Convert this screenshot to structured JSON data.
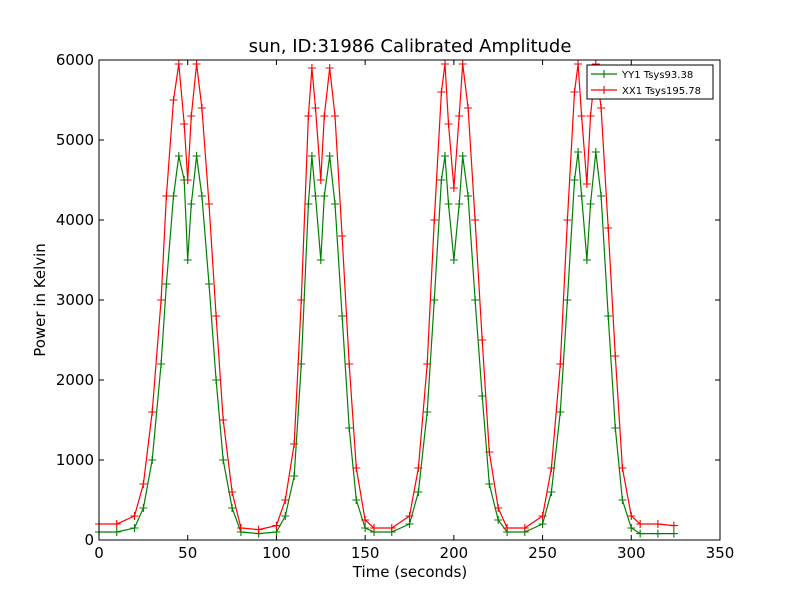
{
  "chart_data": {
    "type": "line",
    "title": "sun, ID:31986 Calibrated Amplitude",
    "xlabel": "Time (seconds)",
    "ylabel": "Power in Kelvin",
    "xlim": [
      0,
      350
    ],
    "ylim": [
      0,
      6000
    ],
    "xticks": [
      "0",
      "50",
      "100",
      "150",
      "200",
      "250",
      "300",
      "350"
    ],
    "yticks": [
      "0",
      "1000",
      "2000",
      "3000",
      "4000",
      "5000",
      "6000"
    ],
    "grid": false,
    "legend_position": "top-right",
    "marker": "+",
    "series": [
      {
        "name": "YY1 Tsys93.38",
        "color": "#008000",
        "x": [
          0,
          10,
          20,
          25,
          30,
          35,
          38,
          42,
          45,
          48,
          50,
          52,
          55,
          58,
          62,
          66,
          70,
          75,
          80,
          90,
          100,
          105,
          110,
          114,
          118,
          120,
          122,
          125,
          127,
          130,
          133,
          137,
          141,
          145,
          150,
          155,
          165,
          175,
          180,
          185,
          189,
          193,
          195,
          197,
          200,
          203,
          205,
          208,
          212,
          216,
          220,
          225,
          230,
          240,
          250,
          255,
          260,
          264,
          268,
          270,
          272,
          275,
          277,
          280,
          283,
          287,
          291,
          295,
          300,
          305,
          315,
          324
        ],
        "y": [
          100,
          100,
          150,
          400,
          1000,
          2200,
          3200,
          4300,
          4800,
          4500,
          3500,
          4200,
          4800,
          4300,
          3200,
          2000,
          1000,
          400,
          100,
          80,
          100,
          300,
          800,
          2200,
          4200,
          4800,
          4300,
          3500,
          4300,
          4800,
          4200,
          2800,
          1400,
          500,
          150,
          100,
          100,
          200,
          600,
          1600,
          3000,
          4500,
          4800,
          4200,
          3500,
          4200,
          4800,
          4300,
          3000,
          1800,
          700,
          250,
          100,
          100,
          200,
          600,
          1600,
          3000,
          4500,
          4850,
          4300,
          3500,
          4200,
          4850,
          4300,
          2800,
          1400,
          500,
          150,
          80,
          80,
          80
        ]
      },
      {
        "name": "XX1 Tsys195.78",
        "color": "#ff0000",
        "x": [
          0,
          10,
          20,
          25,
          30,
          35,
          38,
          42,
          45,
          48,
          50,
          52,
          55,
          58,
          62,
          66,
          70,
          75,
          80,
          90,
          100,
          105,
          110,
          114,
          118,
          120,
          122,
          125,
          127,
          130,
          133,
          137,
          141,
          145,
          150,
          155,
          165,
          175,
          180,
          185,
          189,
          193,
          195,
          197,
          200,
          203,
          205,
          208,
          212,
          216,
          220,
          225,
          230,
          240,
          250,
          255,
          260,
          264,
          268,
          270,
          272,
          275,
          277,
          280,
          283,
          287,
          291,
          295,
          300,
          305,
          315,
          324
        ],
        "y": [
          200,
          200,
          300,
          700,
          1600,
          3000,
          4300,
          5500,
          5950,
          5200,
          4500,
          5300,
          5950,
          5400,
          4200,
          2800,
          1500,
          600,
          150,
          130,
          180,
          500,
          1200,
          3000,
          5300,
          5900,
          5400,
          4500,
          5300,
          5900,
          5300,
          3800,
          2200,
          900,
          250,
          150,
          150,
          300,
          900,
          2200,
          4000,
          5600,
          5950,
          5200,
          4400,
          5300,
          5950,
          5400,
          4000,
          2500,
          1100,
          400,
          150,
          150,
          300,
          900,
          2200,
          4000,
          5600,
          5950,
          5300,
          4450,
          5300,
          5950,
          5400,
          3900,
          2300,
          900,
          300,
          200,
          200,
          180
        ]
      }
    ]
  }
}
